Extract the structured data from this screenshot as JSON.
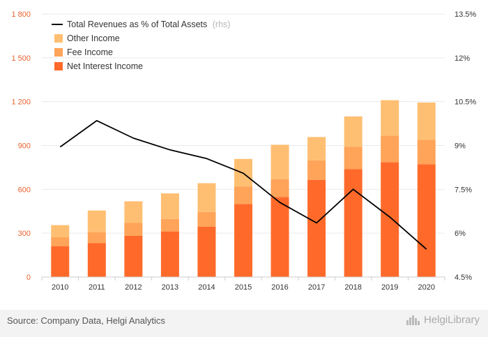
{
  "source_text": "Source: Company Data, Helgi Analytics",
  "brand_text": "HelgiLibrary",
  "colors": {
    "net_interest": "#ff6a2b",
    "fee": "#ffa458",
    "other": "#ffbf73",
    "line": "#000000",
    "left_axis": "#e8612c"
  },
  "chart_data": {
    "type": "bar",
    "stacked": true,
    "categories": [
      "2010",
      "2011",
      "2012",
      "2013",
      "2014",
      "2015",
      "2016",
      "2017",
      "2018",
      "2019",
      "2020"
    ],
    "series": [
      {
        "name": "Net Interest Income",
        "axis": "left",
        "values": [
          210,
          232,
          282,
          312,
          345,
          500,
          547,
          665,
          738,
          785,
          772
        ]
      },
      {
        "name": "Fee Income",
        "axis": "left",
        "values": [
          62,
          75,
          88,
          85,
          100,
          120,
          123,
          133,
          153,
          183,
          167
        ]
      },
      {
        "name": "Other Income",
        "axis": "left",
        "values": [
          83,
          148,
          148,
          175,
          197,
          188,
          235,
          160,
          208,
          242,
          255
        ]
      }
    ],
    "line_series": {
      "name": "Total Revenues as % of Total Assets",
      "name_suffix": "(rhs)",
      "axis": "right",
      "values": [
        8.95,
        9.85,
        9.25,
        8.85,
        8.55,
        8.05,
        7.05,
        6.35,
        7.5,
        6.55,
        5.45
      ]
    },
    "left_axis": {
      "min": 0,
      "max": 1800,
      "ticks": [
        0,
        300,
        600,
        900,
        1200,
        1500,
        1800
      ],
      "tick_labels": [
        "0",
        "300",
        "600",
        "900",
        "1 200",
        "1 500",
        "1 800"
      ]
    },
    "right_axis": {
      "min": 4.5,
      "max": 13.5,
      "ticks": [
        4.5,
        6,
        7.5,
        9,
        10.5,
        12,
        13.5
      ],
      "tick_labels": [
        "4.5%",
        "6%",
        "7.5%",
        "9%",
        "10.5%",
        "12%",
        "13.5%"
      ]
    },
    "grid": true,
    "legend_position": "top-left"
  }
}
